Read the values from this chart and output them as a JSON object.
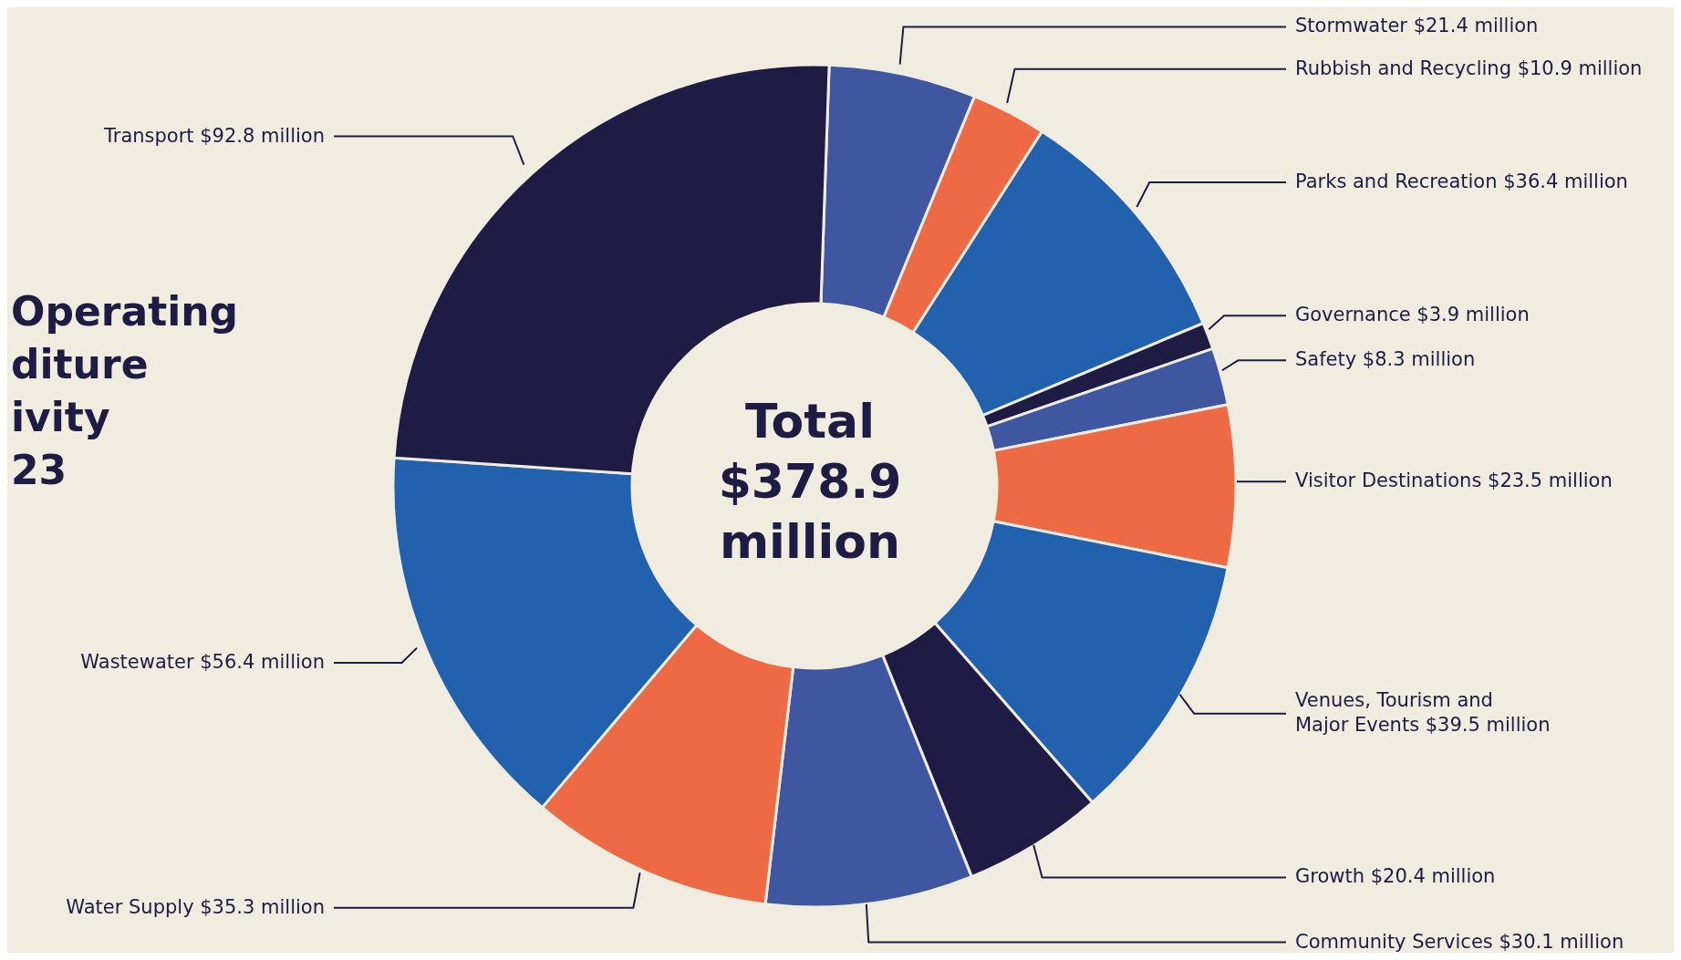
{
  "chart_data": {
    "type": "donut",
    "title": "Operating\nditure\nivity\n23",
    "categories": [
      "Stormwater",
      "Rubbish and Recycling",
      "Parks and Recreation",
      "Governance",
      "Safety",
      "Visitor Destinations",
      "Venues, Tourism and Major Events",
      "Growth",
      "Community Services",
      "Water Supply",
      "Wastewater",
      "Transport"
    ],
    "values": [
      21.4,
      10.9,
      36.4,
      3.9,
      8.3,
      23.5,
      39.5,
      20.4,
      30.1,
      35.3,
      56.4,
      92.8
    ],
    "value_labels": [
      "$21.4 million",
      "$10.9 million",
      "$36.4 million",
      "$3.9 million",
      "$8.3 million",
      "$23.5 million",
      "$39.5 million",
      "$20.4 million",
      "$30.1 million",
      "$35.3 million",
      "$56.4 million",
      "$92.8 million"
    ],
    "colors": [
      "#3f56a0",
      "#ed6a45",
      "#2261ad",
      "#1e1b44",
      "#3f56a0",
      "#ed6a45",
      "#2261ad",
      "#1e1b44",
      "#3f56a0",
      "#ed6a45",
      "#2261ad",
      "#1e1b44"
    ],
    "annotations": [
      "Total $378.9 million"
    ],
    "legend": false
  }
}
